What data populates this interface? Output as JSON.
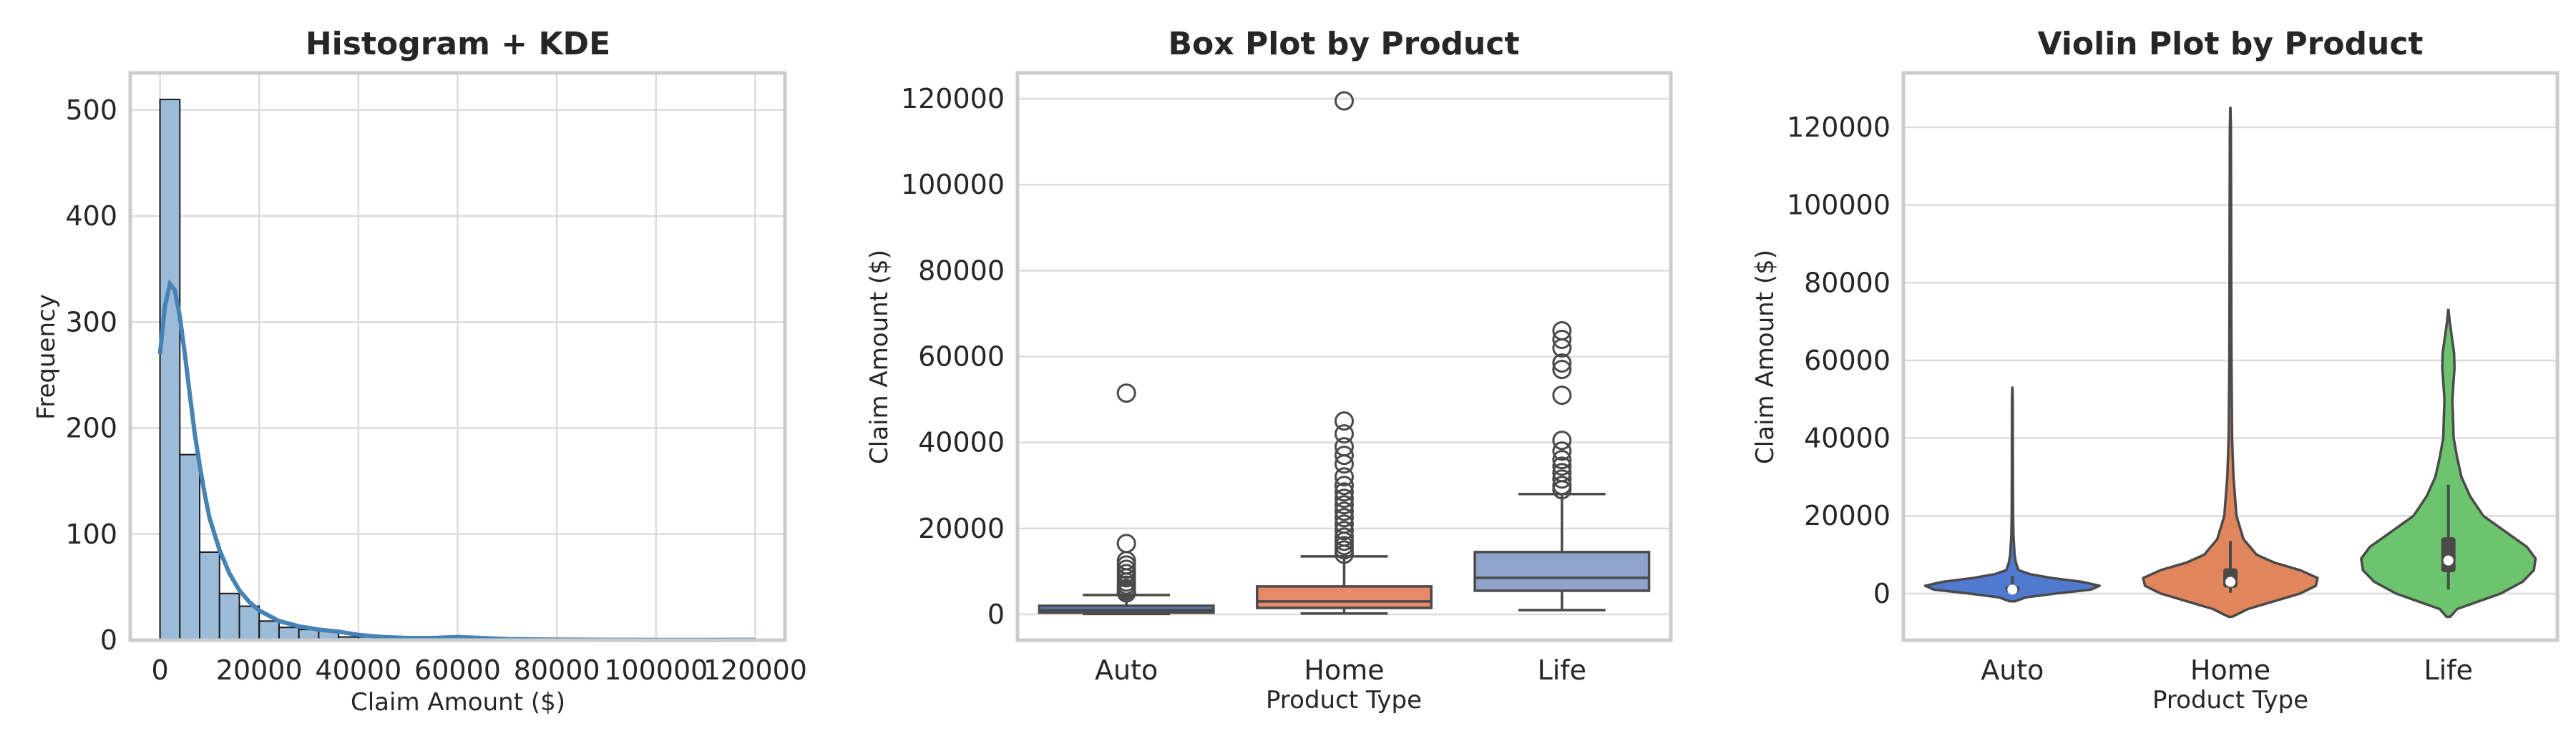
{
  "chart_data": [
    {
      "type": "histogram",
      "title": "Histogram + KDE",
      "xlabel": "Claim Amount ($)",
      "ylabel": "Frequency",
      "xlim": [
        -6000,
        126000
      ],
      "ylim": [
        0,
        535
      ],
      "xticks": [
        0,
        20000,
        40000,
        60000,
        80000,
        100000,
        120000
      ],
      "xtick_labels": [
        "0",
        "20000",
        "40000",
        "60000",
        "80000",
        "100000",
        "120000"
      ],
      "yticks": [
        0,
        100,
        200,
        300,
        400,
        500
      ],
      "bin_width": 4000,
      "bins_start": 0,
      "counts": [
        510,
        175,
        83,
        44,
        32,
        18,
        12,
        10,
        9,
        3,
        3,
        2,
        2,
        1,
        1,
        2,
        1,
        1,
        0,
        0,
        0,
        0,
        0,
        0,
        0,
        0,
        0,
        0,
        0,
        1
      ],
      "kde": {
        "x": [
          0,
          1000,
          2000,
          3000,
          4000,
          5000,
          6000,
          7000,
          8000,
          9000,
          10000,
          12000,
          14000,
          16000,
          18000,
          20000,
          24000,
          28000,
          32000,
          36000,
          40000,
          45000,
          50000,
          55000,
          60000,
          65000,
          70000,
          80000,
          90000,
          100000,
          110000,
          120000
        ],
        "y": [
          270,
          315,
          336,
          330,
          305,
          270,
          232,
          195,
          165,
          138,
          115,
          85,
          63,
          47,
          36,
          28,
          18,
          13,
          10,
          8,
          5,
          3,
          2,
          2,
          3,
          2,
          1,
          0.5,
          0.3,
          0.2,
          0.2,
          0.3
        ]
      },
      "bar_color": "#9bbbd8",
      "line_color": "#4682b4",
      "grid": true
    },
    {
      "type": "box",
      "title": "Box Plot by Product",
      "xlabel": "Product Type",
      "ylabel": "Claim Amount ($)",
      "categories": [
        "Auto",
        "Home",
        "Life"
      ],
      "ylim": [
        -6000,
        126000
      ],
      "yticks": [
        0,
        20000,
        40000,
        60000,
        80000,
        100000,
        120000
      ],
      "boxes": [
        {
          "name": "Auto",
          "whislo": 100,
          "q1": 400,
          "med": 1000,
          "q3": 2000,
          "whishi": 4500,
          "color": "#5b78c4",
          "fliers": [
            5000,
            5500,
            6000,
            6800,
            7500,
            8500,
            9500,
            10500,
            11500,
            12500,
            16500,
            51500
          ]
        },
        {
          "name": "Home",
          "whislo": 200,
          "q1": 1500,
          "med": 3000,
          "q3": 6500,
          "whishi": 13500,
          "color": "#e8896a",
          "fliers": [
            14000,
            15000,
            16000,
            17000,
            18000,
            19500,
            21000,
            22500,
            24000,
            25500,
            27000,
            28500,
            30000,
            32000,
            35000,
            37000,
            39000,
            42000,
            45000,
            119500
          ]
        },
        {
          "name": "Life",
          "whislo": 1000,
          "q1": 5500,
          "med": 8500,
          "q3": 14500,
          "whishi": 28000,
          "color": "#8fa3cc",
          "fliers": [
            29000,
            30000,
            31500,
            33000,
            34500,
            36000,
            38000,
            40500,
            51000,
            57000,
            58500,
            62000,
            64000,
            66000
          ]
        }
      ],
      "grid": true
    },
    {
      "type": "violin",
      "title": "Violin Plot by Product",
      "xlabel": "Product Type",
      "ylabel": "Claim Amount ($)",
      "categories": [
        "Auto",
        "Home",
        "Life"
      ],
      "ylim": [
        -12000,
        134000
      ],
      "yticks": [
        0,
        20000,
        40000,
        60000,
        80000,
        100000,
        120000
      ],
      "violins": [
        {
          "name": "Auto",
          "color": "#5079d0",
          "profile": [
            [
              -2000,
              0.03
            ],
            [
              -1000,
              0.15
            ],
            [
              0,
              0.5
            ],
            [
              1000,
              0.9
            ],
            [
              2000,
              1.0
            ],
            [
              3000,
              0.8
            ],
            [
              4000,
              0.45
            ],
            [
              5000,
              0.2
            ],
            [
              6000,
              0.07
            ],
            [
              8000,
              0.04
            ],
            [
              10000,
              0.025
            ],
            [
              15000,
              0.012
            ],
            [
              20000,
              0.008
            ],
            [
              30000,
              0.006
            ],
            [
              40000,
              0.005
            ],
            [
              50000,
              0.004
            ],
            [
              53000,
              0.001
            ]
          ],
          "q1": 400,
          "med": 1000,
          "q3": 2000,
          "whislo": 100,
          "whishi": 4500
        },
        {
          "name": "Home",
          "color": "#e0855c",
          "profile": [
            [
              -6000,
              0.02
            ],
            [
              -4000,
              0.2
            ],
            [
              -2000,
              0.5
            ],
            [
              0,
              0.8
            ],
            [
              2000,
              0.98
            ],
            [
              4000,
              1.0
            ],
            [
              6000,
              0.8
            ],
            [
              8000,
              0.5
            ],
            [
              10000,
              0.3
            ],
            [
              14000,
              0.15
            ],
            [
              20000,
              0.07
            ],
            [
              30000,
              0.035
            ],
            [
              40000,
              0.02
            ],
            [
              60000,
              0.012
            ],
            [
              80000,
              0.01
            ],
            [
              100000,
              0.008
            ],
            [
              120000,
              0.006
            ],
            [
              125000,
              0.001
            ]
          ],
          "q1": 1500,
          "med": 3000,
          "q3": 6500,
          "whislo": 200,
          "whishi": 13500
        },
        {
          "name": "Life",
          "color": "#6cc46e",
          "profile": [
            [
              -6000,
              0.02
            ],
            [
              -4000,
              0.1
            ],
            [
              -2000,
              0.35
            ],
            [
              0,
              0.6
            ],
            [
              3000,
              0.85
            ],
            [
              6000,
              0.98
            ],
            [
              9000,
              1.0
            ],
            [
              12000,
              0.9
            ],
            [
              16000,
              0.65
            ],
            [
              20000,
              0.4
            ],
            [
              25000,
              0.25
            ],
            [
              30000,
              0.15
            ],
            [
              35000,
              0.1
            ],
            [
              40000,
              0.06
            ],
            [
              50000,
              0.045
            ],
            [
              58000,
              0.07
            ],
            [
              62000,
              0.065
            ],
            [
              66000,
              0.04
            ],
            [
              70000,
              0.015
            ],
            [
              73000,
              0.002
            ]
          ],
          "q1": 5500,
          "med": 8500,
          "q3": 14500,
          "whislo": 1000,
          "whishi": 28000
        }
      ],
      "grid": true
    }
  ]
}
